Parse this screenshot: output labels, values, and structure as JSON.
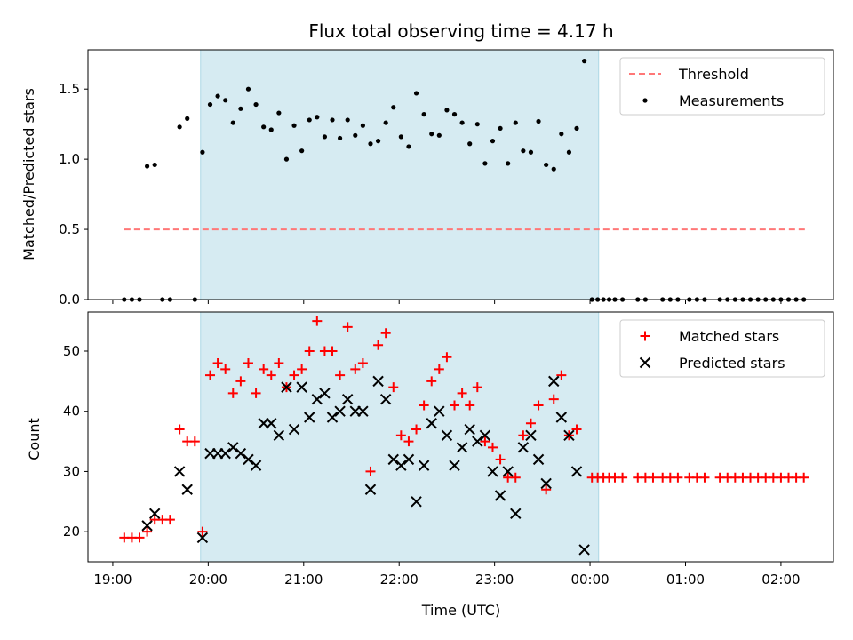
{
  "chart_data": [
    {
      "type": "scatter",
      "title": "Flux total observing time = 4.17 h",
      "xlabel": "",
      "ylabel": "Matched/Predicted stars",
      "xlim": [
        18.74,
        26.55
      ],
      "ylim": [
        0.0,
        1.78
      ],
      "yticks": [
        0.0,
        0.5,
        1.0,
        1.5
      ],
      "ytick_labels": [
        "0.0",
        "0.5",
        "1.0",
        "1.5"
      ],
      "shaded_span": [
        19.92,
        24.09
      ],
      "threshold": {
        "name": "Threshold",
        "value": 0.5,
        "x": [
          19.12,
          26.28
        ],
        "color": "#ff7777"
      },
      "legend": {
        "position": "upper right",
        "entries": [
          "Threshold",
          "Measurements"
        ]
      },
      "series": [
        {
          "name": "Measurements",
          "color": "#000000",
          "points": [
            [
              19.12,
              0
            ],
            [
              19.2,
              0
            ],
            [
              19.28,
              0
            ],
            [
              19.36,
              0.95
            ],
            [
              19.44,
              0.96
            ],
            [
              19.52,
              0
            ],
            [
              19.6,
              0
            ],
            [
              19.7,
              1.23
            ],
            [
              19.78,
              1.29
            ],
            [
              19.86,
              0
            ],
            [
              19.94,
              1.05
            ],
            [
              20.02,
              1.39
            ],
            [
              20.1,
              1.45
            ],
            [
              20.18,
              1.42
            ],
            [
              20.26,
              1.26
            ],
            [
              20.34,
              1.36
            ],
            [
              20.42,
              1.5
            ],
            [
              20.5,
              1.39
            ],
            [
              20.58,
              1.23
            ],
            [
              20.66,
              1.21
            ],
            [
              20.74,
              1.33
            ],
            [
              20.82,
              1.0
            ],
            [
              20.9,
              1.24
            ],
            [
              20.98,
              1.06
            ],
            [
              21.06,
              1.28
            ],
            [
              21.14,
              1.3
            ],
            [
              21.22,
              1.16
            ],
            [
              21.3,
              1.28
            ],
            [
              21.38,
              1.15
            ],
            [
              21.46,
              1.28
            ],
            [
              21.54,
              1.17
            ],
            [
              21.62,
              1.24
            ],
            [
              21.7,
              1.11
            ],
            [
              21.78,
              1.13
            ],
            [
              21.86,
              1.26
            ],
            [
              21.94,
              1.37
            ],
            [
              22.02,
              1.16
            ],
            [
              22.1,
              1.09
            ],
            [
              22.18,
              1.47
            ],
            [
              22.26,
              1.32
            ],
            [
              22.34,
              1.18
            ],
            [
              22.42,
              1.17
            ],
            [
              22.5,
              1.35
            ],
            [
              22.58,
              1.32
            ],
            [
              22.66,
              1.26
            ],
            [
              22.74,
              1.11
            ],
            [
              22.82,
              1.25
            ],
            [
              22.9,
              0.97
            ],
            [
              22.98,
              1.13
            ],
            [
              23.06,
              1.22
            ],
            [
              23.14,
              0.97
            ],
            [
              23.22,
              1.26
            ],
            [
              23.3,
              1.06
            ],
            [
              23.38,
              1.05
            ],
            [
              23.46,
              1.27
            ],
            [
              23.54,
              0.96
            ],
            [
              23.62,
              0.93
            ],
            [
              23.7,
              1.18
            ],
            [
              23.78,
              1.05
            ],
            [
              23.86,
              1.22
            ],
            [
              23.94,
              1.7
            ],
            [
              24.02,
              0
            ],
            [
              24.08,
              0
            ],
            [
              24.14,
              0
            ],
            [
              24.2,
              0
            ],
            [
              24.26,
              0
            ],
            [
              24.34,
              0
            ],
            [
              24.5,
              0
            ],
            [
              24.58,
              0
            ],
            [
              24.76,
              0
            ],
            [
              24.84,
              0
            ],
            [
              24.92,
              0
            ],
            [
              25.04,
              0
            ],
            [
              25.12,
              0
            ],
            [
              25.2,
              0
            ],
            [
              25.36,
              0
            ],
            [
              25.44,
              0
            ],
            [
              25.52,
              0
            ],
            [
              25.6,
              0
            ],
            [
              25.68,
              0
            ],
            [
              25.76,
              0
            ],
            [
              25.84,
              0
            ],
            [
              25.92,
              0
            ],
            [
              26.0,
              0
            ],
            [
              26.08,
              0
            ],
            [
              26.16,
              0
            ],
            [
              26.24,
              0
            ]
          ]
        }
      ]
    },
    {
      "type": "scatter",
      "title": "",
      "xlabel": "Time (UTC)",
      "ylabel": "Count",
      "xlim": [
        18.74,
        26.55
      ],
      "ylim": [
        15.0,
        56.5
      ],
      "yticks": [
        20,
        30,
        40,
        50
      ],
      "ytick_labels": [
        "20",
        "30",
        "40",
        "50"
      ],
      "xticks": [
        19,
        20,
        21,
        22,
        23,
        24,
        25,
        26
      ],
      "xtick_labels": [
        "19:00",
        "20:00",
        "21:00",
        "22:00",
        "23:00",
        "00:00",
        "01:00",
        "02:00"
      ],
      "shaded_span": [
        19.92,
        24.09
      ],
      "legend": {
        "position": "upper right",
        "entries": [
          "Matched stars",
          "Predicted stars"
        ]
      },
      "series": [
        {
          "name": "Matched stars",
          "marker": "+",
          "color": "#ff0000",
          "points": [
            [
              19.12,
              19
            ],
            [
              19.2,
              19
            ],
            [
              19.28,
              19
            ],
            [
              19.36,
              20
            ],
            [
              19.44,
              22
            ],
            [
              19.52,
              22
            ],
            [
              19.6,
              22
            ],
            [
              19.7,
              37
            ],
            [
              19.78,
              35
            ],
            [
              19.86,
              35
            ],
            [
              19.94,
              20
            ],
            [
              20.02,
              46
            ],
            [
              20.1,
              48
            ],
            [
              20.18,
              47
            ],
            [
              20.26,
              43
            ],
            [
              20.34,
              45
            ],
            [
              20.42,
              48
            ],
            [
              20.5,
              43
            ],
            [
              20.58,
              47
            ],
            [
              20.66,
              46
            ],
            [
              20.74,
              48
            ],
            [
              20.82,
              44
            ],
            [
              20.9,
              46
            ],
            [
              20.98,
              47
            ],
            [
              21.06,
              50
            ],
            [
              21.14,
              55
            ],
            [
              21.22,
              50
            ],
            [
              21.3,
              50
            ],
            [
              21.38,
              46
            ],
            [
              21.46,
              54
            ],
            [
              21.54,
              47
            ],
            [
              21.62,
              48
            ],
            [
              21.7,
              30
            ],
            [
              21.78,
              51
            ],
            [
              21.86,
              53
            ],
            [
              21.94,
              44
            ],
            [
              22.02,
              36
            ],
            [
              22.1,
              35
            ],
            [
              22.18,
              37
            ],
            [
              22.26,
              41
            ],
            [
              22.34,
              45
            ],
            [
              22.42,
              47
            ],
            [
              22.5,
              49
            ],
            [
              22.58,
              41
            ],
            [
              22.66,
              43
            ],
            [
              22.74,
              41
            ],
            [
              22.82,
              44
            ],
            [
              22.9,
              35
            ],
            [
              22.98,
              34
            ],
            [
              23.06,
              32
            ],
            [
              23.14,
              29
            ],
            [
              23.22,
              29
            ],
            [
              23.3,
              36
            ],
            [
              23.38,
              38
            ],
            [
              23.46,
              41
            ],
            [
              23.54,
              27
            ],
            [
              23.62,
              42
            ],
            [
              23.7,
              46
            ],
            [
              23.78,
              36
            ],
            [
              23.86,
              37
            ],
            [
              24.02,
              29
            ],
            [
              24.08,
              29
            ],
            [
              24.14,
              29
            ],
            [
              24.2,
              29
            ],
            [
              24.26,
              29
            ],
            [
              24.34,
              29
            ],
            [
              24.5,
              29
            ],
            [
              24.58,
              29
            ],
            [
              24.66,
              29
            ],
            [
              24.76,
              29
            ],
            [
              24.84,
              29
            ],
            [
              24.92,
              29
            ],
            [
              25.04,
              29
            ],
            [
              25.12,
              29
            ],
            [
              25.2,
              29
            ],
            [
              25.36,
              29
            ],
            [
              25.44,
              29
            ],
            [
              25.52,
              29
            ],
            [
              25.6,
              29
            ],
            [
              25.68,
              29
            ],
            [
              25.76,
              29
            ],
            [
              25.84,
              29
            ],
            [
              25.92,
              29
            ],
            [
              26.0,
              29
            ],
            [
              26.08,
              29
            ],
            [
              26.16,
              29
            ],
            [
              26.24,
              29
            ]
          ]
        },
        {
          "name": "Predicted stars",
          "marker": "x",
          "color": "#000000",
          "points": [
            [
              19.36,
              21
            ],
            [
              19.44,
              23
            ],
            [
              19.7,
              30
            ],
            [
              19.78,
              27
            ],
            [
              19.94,
              19
            ],
            [
              20.02,
              33
            ],
            [
              20.1,
              33
            ],
            [
              20.18,
              33
            ],
            [
              20.26,
              34
            ],
            [
              20.34,
              33
            ],
            [
              20.42,
              32
            ],
            [
              20.5,
              31
            ],
            [
              20.58,
              38
            ],
            [
              20.66,
              38
            ],
            [
              20.74,
              36
            ],
            [
              20.82,
              44
            ],
            [
              20.9,
              37
            ],
            [
              20.98,
              44
            ],
            [
              21.06,
              39
            ],
            [
              21.14,
              42
            ],
            [
              21.22,
              43
            ],
            [
              21.3,
              39
            ],
            [
              21.38,
              40
            ],
            [
              21.46,
              42
            ],
            [
              21.54,
              40
            ],
            [
              21.62,
              40
            ],
            [
              21.7,
              27
            ],
            [
              21.78,
              45
            ],
            [
              21.86,
              42
            ],
            [
              21.94,
              32
            ],
            [
              22.02,
              31
            ],
            [
              22.1,
              32
            ],
            [
              22.18,
              25
            ],
            [
              22.26,
              31
            ],
            [
              22.34,
              38
            ],
            [
              22.42,
              40
            ],
            [
              22.5,
              36
            ],
            [
              22.58,
              31
            ],
            [
              22.66,
              34
            ],
            [
              22.74,
              37
            ],
            [
              22.82,
              35
            ],
            [
              22.9,
              36
            ],
            [
              22.98,
              30
            ],
            [
              23.06,
              26
            ],
            [
              23.14,
              30
            ],
            [
              23.22,
              23
            ],
            [
              23.3,
              34
            ],
            [
              23.38,
              36
            ],
            [
              23.46,
              32
            ],
            [
              23.54,
              28
            ],
            [
              23.62,
              45
            ],
            [
              23.7,
              39
            ],
            [
              23.78,
              36
            ],
            [
              23.86,
              30
            ],
            [
              23.94,
              17
            ]
          ]
        }
      ]
    }
  ]
}
